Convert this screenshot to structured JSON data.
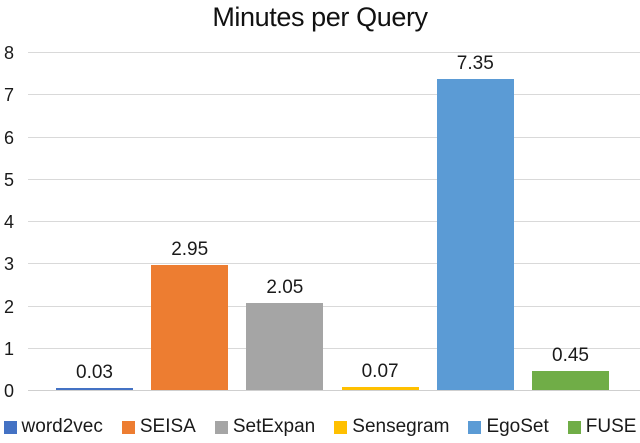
{
  "chart_data": {
    "type": "bar",
    "title": "Minutes per Query",
    "xlabel": "",
    "ylabel": "",
    "categories": [
      "word2vec",
      "SEISA",
      "SetExpan",
      "Sensegram",
      "EgoSet",
      "FUSE"
    ],
    "values": [
      0.03,
      2.95,
      2.05,
      0.07,
      7.35,
      0.45
    ],
    "value_labels": [
      "0.03",
      "2.95",
      "2.05",
      "0.07",
      "7.35",
      "0.45"
    ],
    "series_colors": [
      "#4472C4",
      "#ED7D31",
      "#A5A5A5",
      "#FFC000",
      "#5B9BD5",
      "#70AD47"
    ],
    "ylim": [
      0,
      8
    ],
    "yticks": [
      0,
      1,
      2,
      3,
      4,
      5,
      6,
      7,
      8
    ],
    "grid": true,
    "legend_position": "bottom"
  },
  "style_colors": {
    "gridline": "#d9d9d9",
    "axis_line": "#cfcfcf",
    "text": "#1a1a1a",
    "background": "#ffffff"
  }
}
